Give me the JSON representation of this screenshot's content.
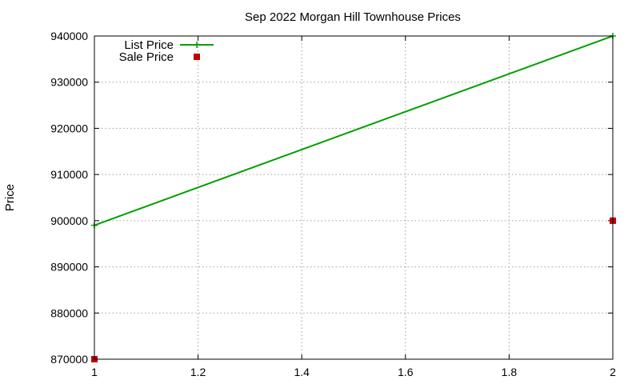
{
  "chart_data": {
    "type": "line",
    "title": "Sep 2022 Morgan Hill Townhouse Prices",
    "xlabel": "",
    "ylabel": "Price",
    "xlim": [
      1,
      2
    ],
    "ylim": [
      870000,
      940000
    ],
    "x_ticks": [
      1,
      1.2,
      1.4,
      1.6,
      1.8,
      2
    ],
    "x_tick_labels": [
      "1",
      "1.2",
      "1.4",
      "1.6",
      "1.8",
      "2"
    ],
    "y_ticks": [
      870000,
      880000,
      890000,
      900000,
      910000,
      920000,
      930000,
      940000
    ],
    "y_tick_labels": [
      "870000",
      "880000",
      "890000",
      "900000",
      "910000",
      "920000",
      "930000",
      "940000"
    ],
    "grid": true,
    "legend_position": "top-left",
    "series": [
      {
        "name": "List Price",
        "style": "linespoints",
        "marker": "plus",
        "color": "#00a000",
        "x": [
          1,
          2
        ],
        "y": [
          899000,
          940000
        ]
      },
      {
        "name": "Sale Price",
        "style": "points",
        "marker": "square",
        "color": "#c00000",
        "x": [
          1,
          2
        ],
        "y": [
          870000,
          900000
        ]
      }
    ]
  }
}
